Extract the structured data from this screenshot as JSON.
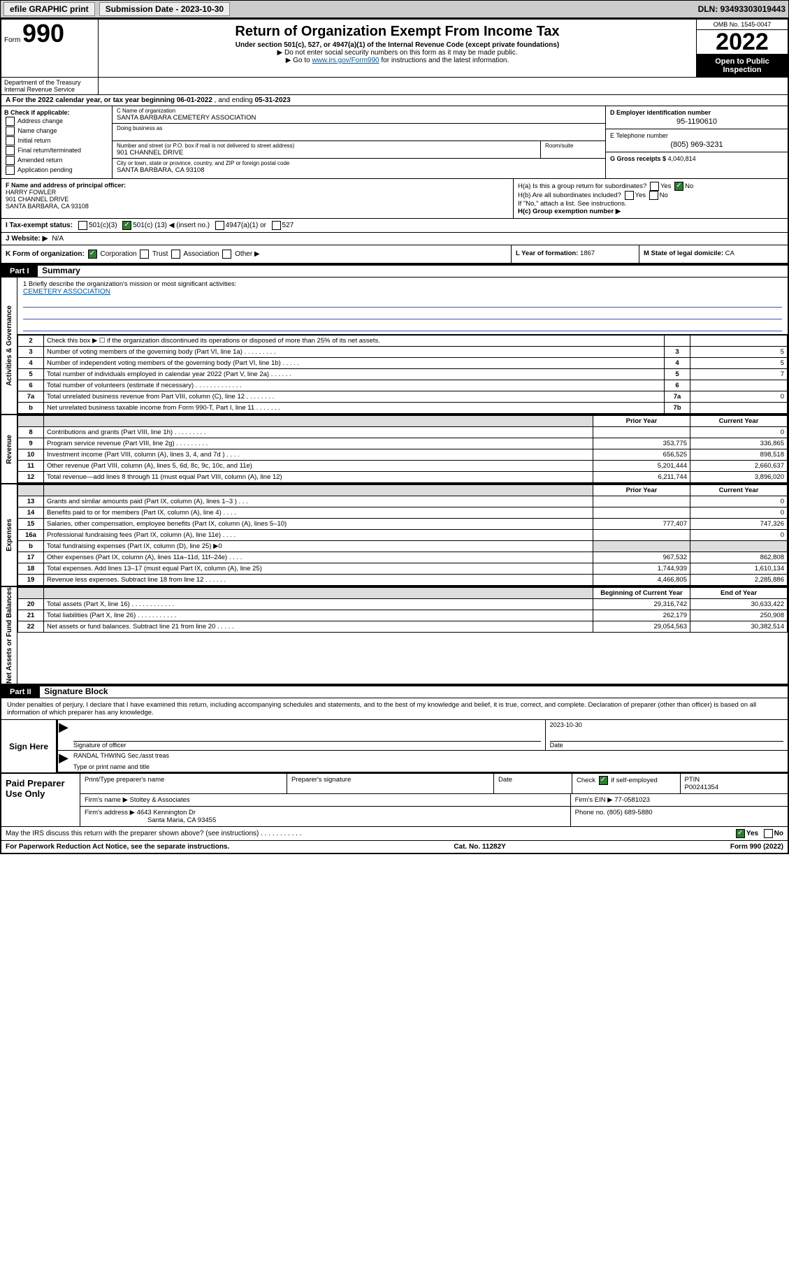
{
  "toolbar": {
    "efile": "efile GRAPHIC print",
    "sub_label": "Submission Date - 2023-10-30",
    "dln_label": "DLN: 93493303019443"
  },
  "header": {
    "form_word": "Form",
    "form_num": "990",
    "title": "Return of Organization Exempt From Income Tax",
    "sub1": "Under section 501(c), 527, or 4947(a)(1) of the Internal Revenue Code (except private foundations)",
    "arrow1": "▶ Do not enter social security numbers on this form as it may be made public.",
    "arrow2_pre": "▶ Go to ",
    "arrow2_link": "www.irs.gov/Form990",
    "arrow2_post": " for instructions and the latest information.",
    "omb": "OMB No. 1545-0047",
    "year": "2022",
    "open": "Open to Public Inspection",
    "dept": "Department of the Treasury Internal Revenue Service"
  },
  "lineA": {
    "pre": "A For the 2022 calendar year, or tax year beginning ",
    "begin": "06-01-2022",
    "mid": " , and ending ",
    "end": "05-31-2023"
  },
  "boxB": {
    "title": "B Check if applicable:",
    "opts": [
      "Address change",
      "Name change",
      "Initial return",
      "Final return/terminated",
      "Amended return",
      "Application pending"
    ]
  },
  "boxC": {
    "name_lbl": "C Name of organization",
    "name": "SANTA BARBARA CEMETERY ASSOCIATION",
    "dba_lbl": "Doing business as",
    "addr_lbl": "Number and street (or P.O. box if mail is not delivered to street address)",
    "room_lbl": "Room/suite",
    "addr": "901 CHANNEL DRIVE",
    "city_lbl": "City or town, state or province, country, and ZIP or foreign postal code",
    "city": "SANTA BARBARA, CA  93108"
  },
  "boxD": {
    "ein_lbl": "D Employer identification number",
    "ein": "95-1190610",
    "tel_lbl": "E Telephone number",
    "tel": "(805) 969-3231",
    "gross_lbl": "G Gross receipts $",
    "gross": "4,040,814"
  },
  "boxF": {
    "lbl": "F Name and address of principal officer:",
    "name": "HARRY FOWLER",
    "addr1": "901 CHANNEL DRIVE",
    "addr2": "SANTA BARBARA, CA  93108"
  },
  "boxH": {
    "ha": "H(a) Is this a group return for subordinates?",
    "hb": "H(b) Are all subordinates included?",
    "hb2": "If \"No,\" attach a list. See instructions.",
    "hc": "H(c) Group exemption number ▶",
    "yes": "Yes",
    "no": "No"
  },
  "lineI": {
    "lbl": "I   Tax-exempt status:",
    "o1": "501(c)(3)",
    "o2_pre": "501(c) (",
    "o2_num": "13",
    "o2_post": ") ◀ (insert no.)",
    "o3": "4947(a)(1) or",
    "o4": "527"
  },
  "lineJ": {
    "lbl": "J   Website: ▶",
    "val": "N/A"
  },
  "lineK": {
    "lbl": "K Form of organization:",
    "o1": "Corporation",
    "o2": "Trust",
    "o3": "Association",
    "o4": "Other ▶"
  },
  "lineL": {
    "lbl": "L Year of formation:",
    "val": "1867"
  },
  "lineM": {
    "lbl": "M State of legal domicile:",
    "val": "CA"
  },
  "part1": {
    "hdr": "Part I",
    "title": "Summary"
  },
  "side": {
    "gov": "Activities & Governance",
    "rev": "Revenue",
    "exp": "Expenses",
    "net": "Net Assets or Fund Balances"
  },
  "mission": {
    "line1_pre": "1   Briefly describe the organization's mission or most significant activities:",
    "text": "CEMETERY ASSOCIATION"
  },
  "govRows": [
    {
      "n": "2",
      "d": "Check this box ▶ ☐  if the organization discontinued its operations or disposed of more than 25% of its net assets.",
      "nb": "",
      "v": ""
    },
    {
      "n": "3",
      "d": "Number of voting members of the governing body (Part VI, line 1a)  .   .   .   .   .   .   .   .   .",
      "nb": "3",
      "v": "5"
    },
    {
      "n": "4",
      "d": "Number of independent voting members of the governing body (Part VI, line 1b)  .   .   .   .   .",
      "nb": "4",
      "v": "5"
    },
    {
      "n": "5",
      "d": "Total number of individuals employed in calendar year 2022 (Part V, line 2a)  .   .   .   .   .   .",
      "nb": "5",
      "v": "7"
    },
    {
      "n": "6",
      "d": "Total number of volunteers (estimate if necessary)  .   .   .   .   .   .   .   .   .   .   .   .   .",
      "nb": "6",
      "v": ""
    },
    {
      "n": "7a",
      "d": "Total unrelated business revenue from Part VIII, column (C), line 12  .   .   .   .   .   .   .   .",
      "nb": "7a",
      "v": "0"
    },
    {
      "n": "b",
      "d": "Net unrelated business taxable income from Form 990-T, Part I, line 11  .   .   .   .   .   .   .",
      "nb": "7b",
      "v": ""
    }
  ],
  "twoColHdr": {
    "prior": "Prior Year",
    "curr": "Current Year"
  },
  "revRows": [
    {
      "n": "8",
      "d": "Contributions and grants (Part VIII, line 1h)  .   .   .   .   .   .   .   .   .",
      "p": "",
      "c": "0"
    },
    {
      "n": "9",
      "d": "Program service revenue (Part VIII, line 2g)  .   .   .   .   .   .   .   .   .",
      "p": "353,775",
      "c": "336,865"
    },
    {
      "n": "10",
      "d": "Investment income (Part VIII, column (A), lines 3, 4, and 7d )  .   .   .   .",
      "p": "656,525",
      "c": "898,518"
    },
    {
      "n": "11",
      "d": "Other revenue (Part VIII, column (A), lines 5, 6d, 8c, 9c, 10c, and 11e)",
      "p": "5,201,444",
      "c": "2,660,637"
    },
    {
      "n": "12",
      "d": "Total revenue—add lines 8 through 11 (must equal Part VIII, column (A), line 12)",
      "p": "6,211,744",
      "c": "3,896,020"
    }
  ],
  "expRows": [
    {
      "n": "13",
      "d": "Grants and similar amounts paid (Part IX, column (A), lines 1–3 )  .   .   .",
      "p": "",
      "c": "0"
    },
    {
      "n": "14",
      "d": "Benefits paid to or for members (Part IX, column (A), line 4)  .   .   .   .",
      "p": "",
      "c": "0"
    },
    {
      "n": "15",
      "d": "Salaries, other compensation, employee benefits (Part IX, column (A), lines 5–10)",
      "p": "777,407",
      "c": "747,326"
    },
    {
      "n": "16a",
      "d": "Professional fundraising fees (Part IX, column (A), line 11e)  .   .   .   .",
      "p": "",
      "c": "0"
    },
    {
      "n": "b",
      "d": "Total fundraising expenses (Part IX, column (D), line 25) ▶0",
      "p": "__SHADE__",
      "c": "__SHADE__"
    },
    {
      "n": "17",
      "d": "Other expenses (Part IX, column (A), lines 11a–11d, 11f–24e)  .   .   .   .",
      "p": "967,532",
      "c": "862,808"
    },
    {
      "n": "18",
      "d": "Total expenses. Add lines 13–17 (must equal Part IX, column (A), line 25)",
      "p": "1,744,939",
      "c": "1,610,134"
    },
    {
      "n": "19",
      "d": "Revenue less expenses. Subtract line 18 from line 12  .   .   .   .   .   .",
      "p": "4,466,805",
      "c": "2,285,886"
    }
  ],
  "netHdr": {
    "beg": "Beginning of Current Year",
    "end": "End of Year"
  },
  "netRows": [
    {
      "n": "20",
      "d": "Total assets (Part X, line 16)  .   .   .   .   .   .   .   .   .   .   .   .",
      "p": "29,316,742",
      "c": "30,633,422"
    },
    {
      "n": "21",
      "d": "Total liabilities (Part X, line 26)  .   .   .   .   .   .   .   .   .   .   .",
      "p": "262,179",
      "c": "250,908"
    },
    {
      "n": "22",
      "d": "Net assets or fund balances. Subtract line 21 from line 20  .   .   .   .   .",
      "p": "29,054,563",
      "c": "30,382,514"
    }
  ],
  "part2": {
    "hdr": "Part II",
    "title": "Signature Block"
  },
  "sigIntro": "Under penalties of perjury, I declare that I have examined this return, including accompanying schedules and statements, and to the best of my knowledge and belief, it is true, correct, and complete. Declaration of preparer (other than officer) is based on all information of which preparer has any knowledge.",
  "sign": {
    "here": "Sign Here",
    "sig_lbl": "Signature of officer",
    "date_lbl": "Date",
    "date": "2023-10-30",
    "name": "RANDAL THWING  Sec./asst treas",
    "name_lbl": "Type or print name and title"
  },
  "prep": {
    "title": "Paid Preparer Use Only",
    "h1": "Print/Type preparer's name",
    "h2": "Preparer's signature",
    "h3": "Date",
    "h4_pre": "Check",
    "h4_post": "if self-employed",
    "h5": "PTIN",
    "ptin": "P00241354",
    "firm_lbl": "Firm's name    ▶",
    "firm": "Stoltey & Associates",
    "ein_lbl": "Firm's EIN ▶",
    "ein": "77-0581023",
    "addr_lbl": "Firm's address ▶",
    "addr1": "4643 Kennington Dr",
    "addr2": "Santa Maria, CA  93455",
    "phone_lbl": "Phone no.",
    "phone": "(805) 689-5880"
  },
  "footerQ": {
    "q": "May the IRS discuss this return with the preparer shown above? (see instructions)  .   .   .   .   .   .   .   .   .   .   .",
    "yes": "Yes",
    "no": "No"
  },
  "footer": {
    "left": "For Paperwork Reduction Act Notice, see the separate instructions.",
    "mid": "Cat. No. 11282Y",
    "right": "Form 990 (2022)"
  }
}
